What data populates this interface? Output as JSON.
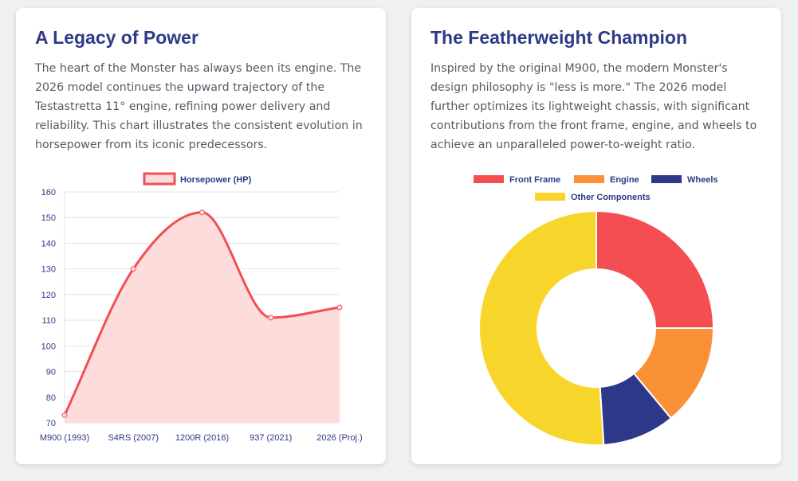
{
  "left_card": {
    "title": "A Legacy of Power",
    "body": "The heart of the Monster has always been its engine. The 2026 model continues the upward trajectory of the Testastretta 11° engine, refining power delivery and reliability. This chart illustrates the consistent evolution in horsepower from its iconic predecessors."
  },
  "right_card": {
    "title": "The Featherweight Champion",
    "body": "Inspired by the original M900, the modern Monster's design philosophy is \"less is more.\" The 2026 model further optimizes its lightweight chassis, with significant contributions from the front frame, engine, and wheels to achieve an unparalleled power-to-weight ratio."
  },
  "colors": {
    "title": "#2f3a86",
    "line": "#f05054",
    "area": "#fddcdc",
    "grid": "#e4e4e4",
    "tick": "#2f3a86"
  },
  "chart_data": [
    {
      "type": "line",
      "categories": [
        "M900 (1993)",
        "S4RS (2007)",
        "1200R (2016)",
        "937 (2021)",
        "2026 (Proj.)"
      ],
      "series": [
        {
          "name": "Horsepower (HP)",
          "values": [
            73,
            130,
            152,
            111,
            115
          ],
          "color": "#f05054",
          "fill": "#fddcdc"
        }
      ],
      "yticks": [
        70,
        80,
        90,
        100,
        110,
        120,
        130,
        140,
        150,
        160
      ],
      "ylim": [
        70,
        160
      ],
      "grid": true,
      "legend": "top",
      "filled": true,
      "smooth": true
    },
    {
      "type": "pie",
      "donut": true,
      "labels": [
        "Front Frame",
        "Engine",
        "Wheels",
        "Other Components"
      ],
      "values": [
        25,
        14,
        10,
        51
      ],
      "colors": [
        "#f44e52",
        "#fb9137",
        "#2e3888",
        "#f8d52a"
      ],
      "legend": "top"
    }
  ]
}
